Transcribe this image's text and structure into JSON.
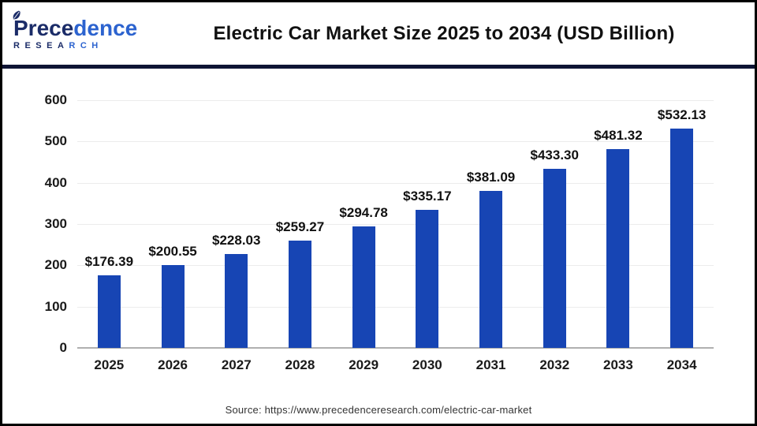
{
  "header": {
    "logo": {
      "name_part1": "Prece",
      "name_part2": "dence",
      "sub_part1": "RESEA",
      "sub_part2": "RCH"
    },
    "title": "Electric Car Market Size 2025 to 2034 (USD Billion)"
  },
  "chart_data": {
    "type": "bar",
    "title": "Electric Car Market Size 2025 to 2034 (USD Billion)",
    "categories": [
      "2025",
      "2026",
      "2027",
      "2028",
      "2029",
      "2030",
      "2031",
      "2032",
      "2033",
      "2034"
    ],
    "values": [
      176.39,
      200.55,
      228.03,
      259.27,
      294.78,
      335.17,
      381.09,
      433.3,
      481.32,
      532.13
    ],
    "value_prefix": "$",
    "xlabel": "",
    "ylabel": "",
    "ylim": [
      0,
      600
    ],
    "yticks": [
      0,
      100,
      200,
      300,
      400,
      500,
      600
    ],
    "grid": true,
    "legend_position": "none",
    "bar_color": "#1745b4"
  },
  "colors": {
    "bar": "#1745b4",
    "divider": "#0e1434",
    "outer_border": "#000000",
    "gridline": "#ececec",
    "axis_line": "#b0b0b0",
    "logo_navy": "#1b2c68",
    "logo_blue": "#2c63cf"
  },
  "footer": {
    "source": "Source: https://www.precedenceresearch.com/electric-car-market"
  }
}
